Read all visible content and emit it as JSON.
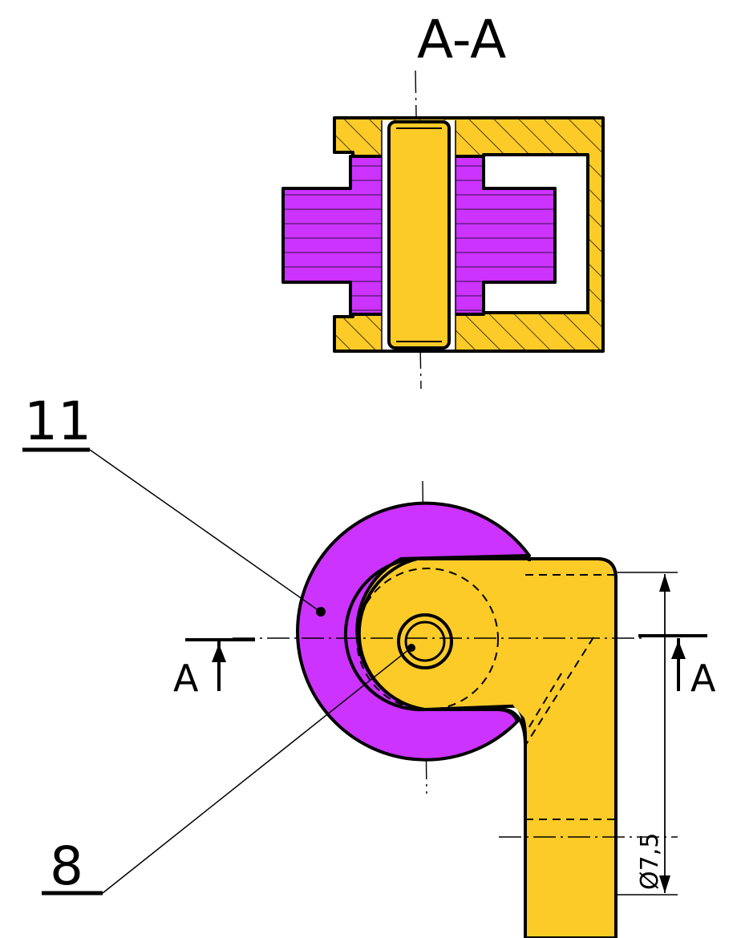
{
  "section": {
    "title": "A-A"
  },
  "labels": {
    "part_11": "11",
    "part_8": "8",
    "cut_left": "A",
    "cut_right": "A",
    "diameter": "Ø7,5"
  },
  "colors": {
    "bracket": "#fccb28",
    "roller": "#cc33ff",
    "outline": "#000000",
    "background": "#ffffff"
  }
}
